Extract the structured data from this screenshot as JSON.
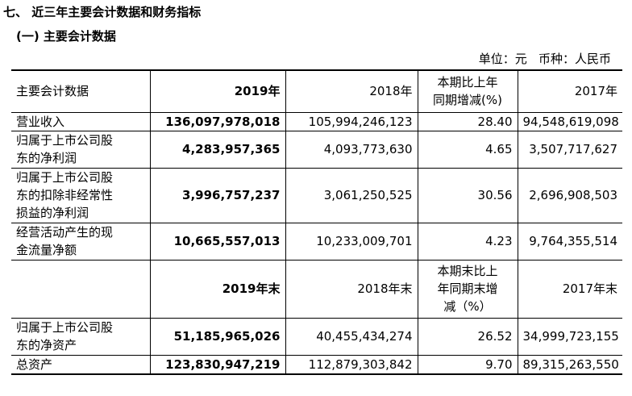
{
  "section_title": "七、 近三年主要会计数据和财务指标",
  "subsection_title": "(一) 主要会计数据",
  "unit_note": "单位：元   币种：人民币",
  "header1": {
    "label": "主要会计数据",
    "y2019": "2019年",
    "y2018": "2018年",
    "change": [
      "本期比上年",
      "同期增减(%)"
    ],
    "y2017": "2017年"
  },
  "rows1": [
    {
      "label": [
        "营业收入"
      ],
      "v2019": "136,097,978,018",
      "v2018": "105,994,246,123",
      "change": "28.40",
      "v2017": "94,548,619,098"
    },
    {
      "label": [
        "归属于上市公司股",
        "东的净利润"
      ],
      "v2019": "4,283,957,365",
      "v2018": "4,093,773,630",
      "change": "4.65",
      "v2017": "3,507,717,627"
    },
    {
      "label": [
        "归属于上市公司股",
        "东的扣除非经常性",
        "损益的净利润"
      ],
      "v2019": "3,996,757,237",
      "v2018": "3,061,250,525",
      "change": "30.56",
      "v2017": "2,696,908,503"
    },
    {
      "label": [
        "经营活动产生的现",
        "金流量净额"
      ],
      "v2019": "10,665,557,013",
      "v2018": "10,233,009,701",
      "change": "4.23",
      "v2017": "9,764,355,514"
    }
  ],
  "header2": {
    "label": "",
    "y2019": "2019年末",
    "y2018": "2018年末",
    "change": [
      "本期末比上",
      "年同期末增",
      "减（%）"
    ],
    "y2017": "2017年末"
  },
  "rows2": [
    {
      "label": [
        "归属于上市公司股",
        "东的净资产"
      ],
      "v2019": "51,185,965,026",
      "v2018": "40,455,434,274",
      "change": "26.52",
      "v2017": "34,999,723,155"
    },
    {
      "label": [
        "总资产"
      ],
      "v2019": "123,830,947,219",
      "v2018": "112,879,303,842",
      "change": "9.70",
      "v2017": "89,315,263,550"
    }
  ]
}
